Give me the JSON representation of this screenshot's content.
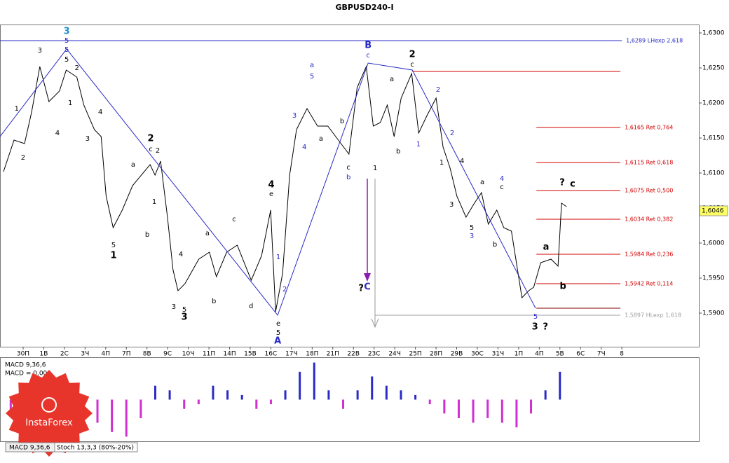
{
  "title": "GBPUSD240-I",
  "logo": {
    "text": "InstaForex"
  },
  "tabs": [
    "MACD 9,36,6",
    "Stoch 13,3,3 (80%-20%)"
  ],
  "chart_data": [
    {
      "type": "line",
      "xlim": [
        -1.12,
        32.73
      ],
      "xticks": [
        {
          "value": 0,
          "label": "30П"
        },
        {
          "value": 1,
          "label": "1В"
        },
        {
          "value": 2,
          "label": "2С"
        },
        {
          "value": 3,
          "label": "3Ч"
        },
        {
          "value": 4,
          "label": "4П"
        },
        {
          "value": 5,
          "label": "7П"
        },
        {
          "value": 6,
          "label": "8В"
        },
        {
          "value": 7,
          "label": "9С"
        },
        {
          "value": 8,
          "label": "10Ч"
        },
        {
          "value": 9,
          "label": "11П"
        },
        {
          "value": 10,
          "label": "14П"
        },
        {
          "value": 11,
          "label": "15В"
        },
        {
          "value": 12,
          "label": "16С"
        },
        {
          "value": 13,
          "label": "17Ч"
        },
        {
          "value": 14,
          "label": "18П"
        },
        {
          "value": 15,
          "label": "21П"
        },
        {
          "value": 16,
          "label": "22В"
        },
        {
          "value": 17,
          "label": "23С"
        },
        {
          "value": 18,
          "label": "24Ч"
        },
        {
          "value": 19,
          "label": "25П"
        },
        {
          "value": 20,
          "label": "28П"
        },
        {
          "value": 21,
          "label": "29В"
        },
        {
          "value": 22,
          "label": "30С"
        },
        {
          "value": 23,
          "label": "31Ч"
        },
        {
          "value": 24,
          "label": "1П"
        },
        {
          "value": 25,
          "label": "4П"
        },
        {
          "value": 26,
          "label": "5В"
        },
        {
          "value": 27,
          "label": "6С"
        },
        {
          "value": 28,
          "label": "7Ч"
        },
        {
          "value": 29,
          "label": "8"
        }
      ],
      "ylim": [
        1.5852,
        1.6312
      ],
      "yticks": [
        {
          "value": 1.63,
          "label": "1,6300"
        },
        {
          "value": 1.625,
          "label": "1,6250"
        },
        {
          "value": 1.62,
          "label": "1,6200"
        },
        {
          "value": 1.615,
          "label": "1,6150"
        },
        {
          "value": 1.61,
          "label": "1,6100"
        },
        {
          "value": 1.605,
          "label": "1,6050"
        },
        {
          "value": 1.6,
          "label": "1,6000"
        },
        {
          "value": 1.595,
          "label": "1,5950"
        },
        {
          "value": 1.59,
          "label": "1,5900"
        }
      ],
      "series": [
        {
          "color": "#000000",
          "width": 1,
          "x": [
            -0.95,
            -0.44,
            0.07,
            0.41,
            0.81,
            1.25,
            1.76,
            2.09,
            2.6,
            2.94,
            3.45,
            3.78,
            4.02,
            4.36,
            4.8,
            5.3,
            6.15,
            6.39,
            6.66,
            6.99,
            7.26,
            7.5,
            7.84,
            8.51,
            9.02,
            9.36,
            9.86,
            10.37,
            11.05,
            11.55,
            11.99,
            12.23,
            12.57,
            12.91,
            13.24,
            13.75,
            14.26,
            14.76,
            15.27,
            15.78,
            16.18,
            16.62,
            16.96,
            17.3,
            17.64,
            17.97,
            18.31,
            18.82,
            19.16,
            19.56,
            20,
            20.34,
            20.68,
            21.01,
            21.45,
            21.86,
            22.2,
            22.53,
            22.94,
            23.28,
            23.65,
            24.16,
            24.49,
            24.73,
            25.07,
            25.57,
            25.91,
            26.08,
            26.32
          ],
          "values": [
            1.6102,
            1.6147,
            1.6142,
            1.6187,
            1.6252,
            1.6202,
            1.6217,
            1.6247,
            1.6237,
            1.6197,
            1.6162,
            1.6152,
            1.6067,
            1.6022,
            1.6047,
            1.6082,
            1.6112,
            1.6097,
            1.6117,
            1.6037,
            1.5962,
            1.5932,
            1.5942,
            1.5977,
            1.5987,
            1.5952,
            1.5987,
            1.5997,
            1.5947,
            1.5982,
            1.6047,
            1.5902,
            1.5957,
            1.6097,
            1.6162,
            1.6192,
            1.6167,
            1.6167,
            1.6147,
            1.6127,
            1.6222,
            1.6252,
            1.6167,
            1.6172,
            1.6197,
            1.6152,
            1.6207,
            1.6242,
            1.6157,
            1.6182,
            1.6207,
            1.6137,
            1.6107,
            1.6067,
            1.6037,
            1.6057,
            1.6072,
            1.6027,
            1.6047,
            1.6022,
            1.6017,
            1.5922,
            1.5932,
            1.5937,
            1.5972,
            1.5977,
            1.5967,
            1.6057,
            1.6052
          ]
        },
        {
          "color": "#2a2ac8",
          "width": 1,
          "x": [
            -1.12,
            2.11,
            12.33,
            16.71,
            18.85,
            24.82
          ],
          "values": [
            1.6152,
            1.6277,
            1.5897,
            1.6257,
            1.6247,
            1.5907
          ]
        }
      ],
      "levels": [
        {
          "value": 1.6289,
          "label": "1,6289 LHexp 2,618",
          "color": "#2a2ac8",
          "x0": -1.12,
          "x1": 29
        },
        {
          "value": 1.6245,
          "color": "#d00000",
          "x0": 18.85,
          "x1": 28.93
        },
        {
          "value": 1.6165,
          "label": "1,6165 Ret 0,764",
          "color": "#d00000",
          "x0": 24.86,
          "x1": 28.93
        },
        {
          "value": 1.6115,
          "label": "1,6115 Ret 0,618",
          "color": "#d00000",
          "x0": 24.86,
          "x1": 28.93
        },
        {
          "value": 1.6075,
          "label": "1,6075 Ret 0,500",
          "color": "#d00000",
          "x0": 24.86,
          "x1": 28.93
        },
        {
          "value": 1.6034,
          "label": "1,6034 Ret 0,382",
          "color": "#d00000",
          "x0": 24.86,
          "x1": 28.93
        },
        {
          "value": 1.5984,
          "label": "1,5984 Ret 0,236",
          "color": "#d00000",
          "x0": 24.86,
          "x1": 28.93
        },
        {
          "value": 1.5942,
          "label": "1,5942 Ret 0,114",
          "color": "#d00000",
          "x0": 24.86,
          "x1": 28.93
        },
        {
          "value": 1.5907,
          "color": "#800000",
          "x0": 24.86,
          "x1": 28.93
        },
        {
          "value": 1.5897,
          "label": "1,5897 HLexp 1,618",
          "color": "#a0a0a0",
          "x0": 17.05,
          "x1": 28.93
        }
      ],
      "last_price": {
        "value": 1.6046,
        "label": "1,6046",
        "color": "#ffff66"
      },
      "annotations": [
        {
          "text": "3",
          "x": 2.11,
          "y": 1.6302,
          "color": "#1e90c8",
          "bold": true
        },
        {
          "text": "5",
          "x": 2.11,
          "y": 1.6289,
          "color": "#2a2ac8"
        },
        {
          "text": "5",
          "x": 2.11,
          "y": 1.6276,
          "color": "#2a2ac8"
        },
        {
          "text": "5",
          "x": 2.11,
          "y": 1.6262
        },
        {
          "text": "3",
          "x": 0.81,
          "y": 1.6275
        },
        {
          "text": "1",
          "x": -0.31,
          "y": 1.6192
        },
        {
          "text": "2",
          "x": 0,
          "y": 1.6122
        },
        {
          "text": "1",
          "x": 2.28,
          "y": 1.62
        },
        {
          "text": "4",
          "x": 1.66,
          "y": 1.6157
        },
        {
          "text": "2",
          "x": 2.61,
          "y": 1.625
        },
        {
          "text": "4",
          "x": 3.74,
          "y": 1.6187
        },
        {
          "text": "3",
          "x": 3.12,
          "y": 1.6149
        },
        {
          "text": "5",
          "x": 4.38,
          "y": 1.5997
        },
        {
          "text": "1",
          "x": 4.38,
          "y": 1.5982,
          "bold": true
        },
        {
          "text": "b",
          "x": 6.01,
          "y": 1.6012
        },
        {
          "text": "a",
          "x": 5.33,
          "y": 1.6112
        },
        {
          "text": "2",
          "x": 6.18,
          "y": 1.6149,
          "bold": true
        },
        {
          "text": "c",
          "x": 6.18,
          "y": 1.6134
        },
        {
          "text": "2",
          "x": 6.52,
          "y": 1.6132
        },
        {
          "text": "1",
          "x": 6.35,
          "y": 1.6059
        },
        {
          "text": "3",
          "x": 7.3,
          "y": 1.5909
        },
        {
          "text": "5",
          "x": 7.81,
          "y": 1.5905
        },
        {
          "text": "3",
          "x": 7.81,
          "y": 1.5894,
          "bold": true
        },
        {
          "text": "4",
          "x": 7.64,
          "y": 1.5984
        },
        {
          "text": "b",
          "x": 9.24,
          "y": 1.5917
        },
        {
          "text": "a",
          "x": 8.93,
          "y": 1.6014
        },
        {
          "text": "c",
          "x": 10.22,
          "y": 1.6034
        },
        {
          "text": "d",
          "x": 11.04,
          "y": 1.591
        },
        {
          "text": "4",
          "x": 12.02,
          "y": 1.6083,
          "bold": true
        },
        {
          "text": "e",
          "x": 12.02,
          "y": 1.607
        },
        {
          "text": "1",
          "x": 12.36,
          "y": 1.598,
          "color": "#2a2ac8"
        },
        {
          "text": "2",
          "x": 12.67,
          "y": 1.5934,
          "color": "#2a2ac8"
        },
        {
          "text": "e",
          "x": 12.36,
          "y": 1.5885
        },
        {
          "text": "5",
          "x": 12.36,
          "y": 1.5872
        },
        {
          "text": "A",
          "x": 12.33,
          "y": 1.586,
          "color": "#2a2ac8",
          "bold": true
        },
        {
          "text": "3",
          "x": 13.14,
          "y": 1.6182,
          "color": "#2a2ac8"
        },
        {
          "text": "4",
          "x": 13.62,
          "y": 1.6137,
          "color": "#2a2ac8"
        },
        {
          "text": "a",
          "x": 13.99,
          "y": 1.6254,
          "color": "#2a2ac8"
        },
        {
          "text": "5",
          "x": 13.99,
          "y": 1.6238,
          "color": "#2a2ac8"
        },
        {
          "text": "a",
          "x": 14.43,
          "y": 1.6149
        },
        {
          "text": "b",
          "x": 15.45,
          "y": 1.6174
        },
        {
          "text": "c",
          "x": 15.76,
          "y": 1.6108
        },
        {
          "text": "b",
          "x": 15.76,
          "y": 1.6094,
          "color": "#2a2ac8"
        },
        {
          "text": "B",
          "x": 16.71,
          "y": 1.6282,
          "color": "#2a2ac8",
          "bold": true
        },
        {
          "text": "c",
          "x": 16.71,
          "y": 1.6268,
          "color": "#2a2ac8"
        },
        {
          "text": "1",
          "x": 17.05,
          "y": 1.6107
        },
        {
          "text": "?",
          "x": 16.37,
          "y": 1.5935,
          "bold": true
        },
        {
          "text": "C",
          "x": 16.67,
          "y": 1.5937,
          "color": "#2a2ac8",
          "bold": true
        },
        {
          "text": "a",
          "x": 17.86,
          "y": 1.6234
        },
        {
          "text": "b",
          "x": 18.17,
          "y": 1.6131
        },
        {
          "text": "2",
          "x": 18.85,
          "y": 1.6269,
          "bold": true
        },
        {
          "text": "c",
          "x": 18.85,
          "y": 1.6255
        },
        {
          "text": "2",
          "x": 20.1,
          "y": 1.6219,
          "color": "#2a2ac8"
        },
        {
          "text": "1",
          "x": 19.15,
          "y": 1.6141,
          "color": "#2a2ac8"
        },
        {
          "text": "2",
          "x": 20.78,
          "y": 1.6157,
          "color": "#2a2ac8"
        },
        {
          "text": "1",
          "x": 20.27,
          "y": 1.6115
        },
        {
          "text": "4",
          "x": 21.26,
          "y": 1.6117
        },
        {
          "text": "3",
          "x": 20.75,
          "y": 1.6055
        },
        {
          "text": "a",
          "x": 22.24,
          "y": 1.6087
        },
        {
          "text": "4",
          "x": 23.19,
          "y": 1.6092,
          "color": "#2a2ac8"
        },
        {
          "text": "c",
          "x": 23.19,
          "y": 1.608
        },
        {
          "text": "5",
          "x": 21.73,
          "y": 1.6022
        },
        {
          "text": "3",
          "x": 21.73,
          "y": 1.601,
          "color": "#2a2ac8"
        },
        {
          "text": "b",
          "x": 22.85,
          "y": 1.5998
        },
        {
          "text": "5",
          "x": 24.82,
          "y": 1.5895,
          "color": "#2a2ac8"
        },
        {
          "text": "3",
          "x": 24.79,
          "y": 1.588,
          "bold": true
        },
        {
          "text": "?",
          "x": 25.3,
          "y": 1.588,
          "bold": true
        },
        {
          "text": "a",
          "x": 25.33,
          "y": 1.5994,
          "bold": true
        },
        {
          "text": "b",
          "x": 26.15,
          "y": 1.5938,
          "bold": true
        },
        {
          "text": "?",
          "x": 26.11,
          "y": 1.6086,
          "bold": true
        },
        {
          "text": "c",
          "x": 26.62,
          "y": 1.6084,
          "bold": true
        }
      ]
    },
    {
      "type": "bar",
      "labels": [
        "MACD 9,36,6",
        "MACD = 0,00"
      ],
      "xlim": [
        -1.12,
        32.73
      ],
      "ylim": [
        -0.0009,
        0.0009
      ],
      "positive_color": "#2a2ac8",
      "negative_color": "#d030d0",
      "x": [
        -0.6,
        0.1,
        0.8,
        1.5,
        2.2,
        2.9,
        3.6,
        4.3,
        5.0,
        5.7,
        6.4,
        7.1,
        7.8,
        8.5,
        9.2,
        9.9,
        10.6,
        11.3,
        12.0,
        12.7,
        13.4,
        14.1,
        14.8,
        15.5,
        16.2,
        16.9,
        17.6,
        18.3,
        19.0,
        19.7,
        20.4,
        21.1,
        21.8,
        22.5,
        23.2,
        23.9,
        24.6,
        25.3,
        26.0
      ],
      "values": [
        -0.0003,
        -0.0004,
        -0.0004,
        -0.0003,
        -0.0002,
        -0.0003,
        -0.0005,
        -0.0007,
        -0.0008,
        -0.0004,
        0.0003,
        0.0002,
        -0.0002,
        -0.0001,
        0.0003,
        0.0002,
        0.0001,
        -0.0002,
        -0.0001,
        0.0002,
        0.0006,
        0.0008,
        0.0002,
        -0.0002,
        0.0002,
        0.0005,
        0.0003,
        0.0002,
        0.0001,
        -0.0001,
        -0.0003,
        -0.0004,
        -0.0005,
        -0.0004,
        -0.0005,
        -0.0006,
        -0.0003,
        0.0002,
        0.0006
      ]
    }
  ]
}
